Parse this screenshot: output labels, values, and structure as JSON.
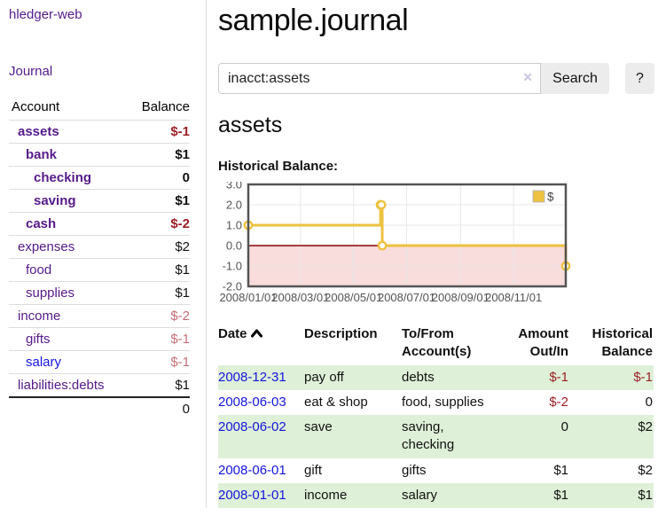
{
  "sidebar": {
    "brand": "hledger-web",
    "nav_journal": "Journal",
    "accounts_table": {
      "columns": {
        "account": "Account",
        "balance": "Balance"
      },
      "rows": [
        {
          "name": "assets",
          "depth": 1,
          "bold": true,
          "balance": "$-1",
          "neg": "dark"
        },
        {
          "name": "bank",
          "depth": 2,
          "bold": true,
          "balance": "$1"
        },
        {
          "name": "checking",
          "depth": 3,
          "bold": true,
          "balance": "0"
        },
        {
          "name": "saving",
          "depth": 3,
          "bold": true,
          "balance": "$1"
        },
        {
          "name": "cash",
          "depth": 2,
          "bold": true,
          "balance": "$-2",
          "neg": "dark"
        },
        {
          "name": "expenses",
          "depth": 1,
          "bold": false,
          "balance": "$2"
        },
        {
          "name": "food",
          "depth": 2,
          "bold": false,
          "balance": "$1"
        },
        {
          "name": "supplies",
          "depth": 2,
          "bold": false,
          "balance": "$1"
        },
        {
          "name": "income",
          "depth": 1,
          "bold": false,
          "balance": "$-2",
          "neg": "light"
        },
        {
          "name": "gifts",
          "depth": 2,
          "bold": false,
          "balance": "$-1",
          "neg": "light"
        },
        {
          "name": "salary",
          "depth": 2,
          "bold": false,
          "balance": "$-1",
          "neg": "light",
          "link_color": "blue"
        },
        {
          "name": "liabilities:debts",
          "depth": 1,
          "bold": false,
          "balance": "$1"
        }
      ],
      "total": "0"
    }
  },
  "header": {
    "title": "sample.journal"
  },
  "search": {
    "value": "inacct:assets",
    "clear_icon": "✕",
    "button_label": "Search",
    "help_label": "?"
  },
  "account_page": {
    "heading": "assets"
  },
  "chart_data": {
    "type": "line",
    "title": "Historical Balance:",
    "step": true,
    "series": [
      {
        "name": "$",
        "color": "#edc240",
        "points": [
          [
            "2008-01-01",
            1
          ],
          [
            "2008-06-01",
            2
          ],
          [
            "2008-06-02",
            2
          ],
          [
            "2008-06-03",
            0
          ],
          [
            "2008-12-31",
            -1
          ]
        ]
      }
    ],
    "xlim": [
      "2008-01-01",
      "2008-12-31"
    ],
    "ylim": [
      -2,
      3
    ],
    "y_ticks": [
      3.0,
      2.0,
      1.0,
      0.0,
      -1.0,
      -2.0
    ],
    "x_ticks": [
      {
        "date": "2008-01-01",
        "label": "2008/01/01"
      },
      {
        "date": "2008-03-01",
        "label": "2008/03/01"
      },
      {
        "date": "2008-05-01",
        "label": "2008/05/01"
      },
      {
        "date": "2008-07-01",
        "label": "2008/07/01"
      },
      {
        "date": "2008-09-01",
        "label": "2008/09/01"
      },
      {
        "date": "2008-11-01",
        "label": "2008/11/01"
      }
    ],
    "grid": true,
    "grid_color": "#e8e8e8",
    "border_color": "#545454",
    "negative_fill": "#f9dcdc",
    "zero_line_color": "#8b0000",
    "legend_position": "top-right",
    "axis_label_color": "#545454"
  },
  "register": {
    "columns": {
      "date": "Date",
      "description": "Description",
      "accounts": "To/From Account(s)",
      "amount": "Amount Out/In",
      "balance": "Historical Balance"
    },
    "rows": [
      {
        "date": "2008-12-31",
        "description": "pay off",
        "accounts": "debts",
        "amount": "$-1",
        "amount_neg": true,
        "balance": "$-1",
        "balance_neg": true
      },
      {
        "date": "2008-06-03",
        "description": "eat & shop",
        "accounts": "food, supplies",
        "amount": "$-2",
        "amount_neg": true,
        "balance": "0",
        "balance_neg": false
      },
      {
        "date": "2008-06-02",
        "description": "save",
        "accounts": "saving, checking",
        "amount": "0",
        "amount_neg": false,
        "balance": "$2",
        "balance_neg": false
      },
      {
        "date": "2008-06-01",
        "description": "gift",
        "accounts": "gifts",
        "amount": "$1",
        "amount_neg": false,
        "balance": "$2",
        "balance_neg": false
      },
      {
        "date": "2008-01-01",
        "description": "income",
        "accounts": "salary",
        "amount": "$1",
        "amount_neg": false,
        "balance": "$1",
        "balance_neg": false
      }
    ]
  }
}
